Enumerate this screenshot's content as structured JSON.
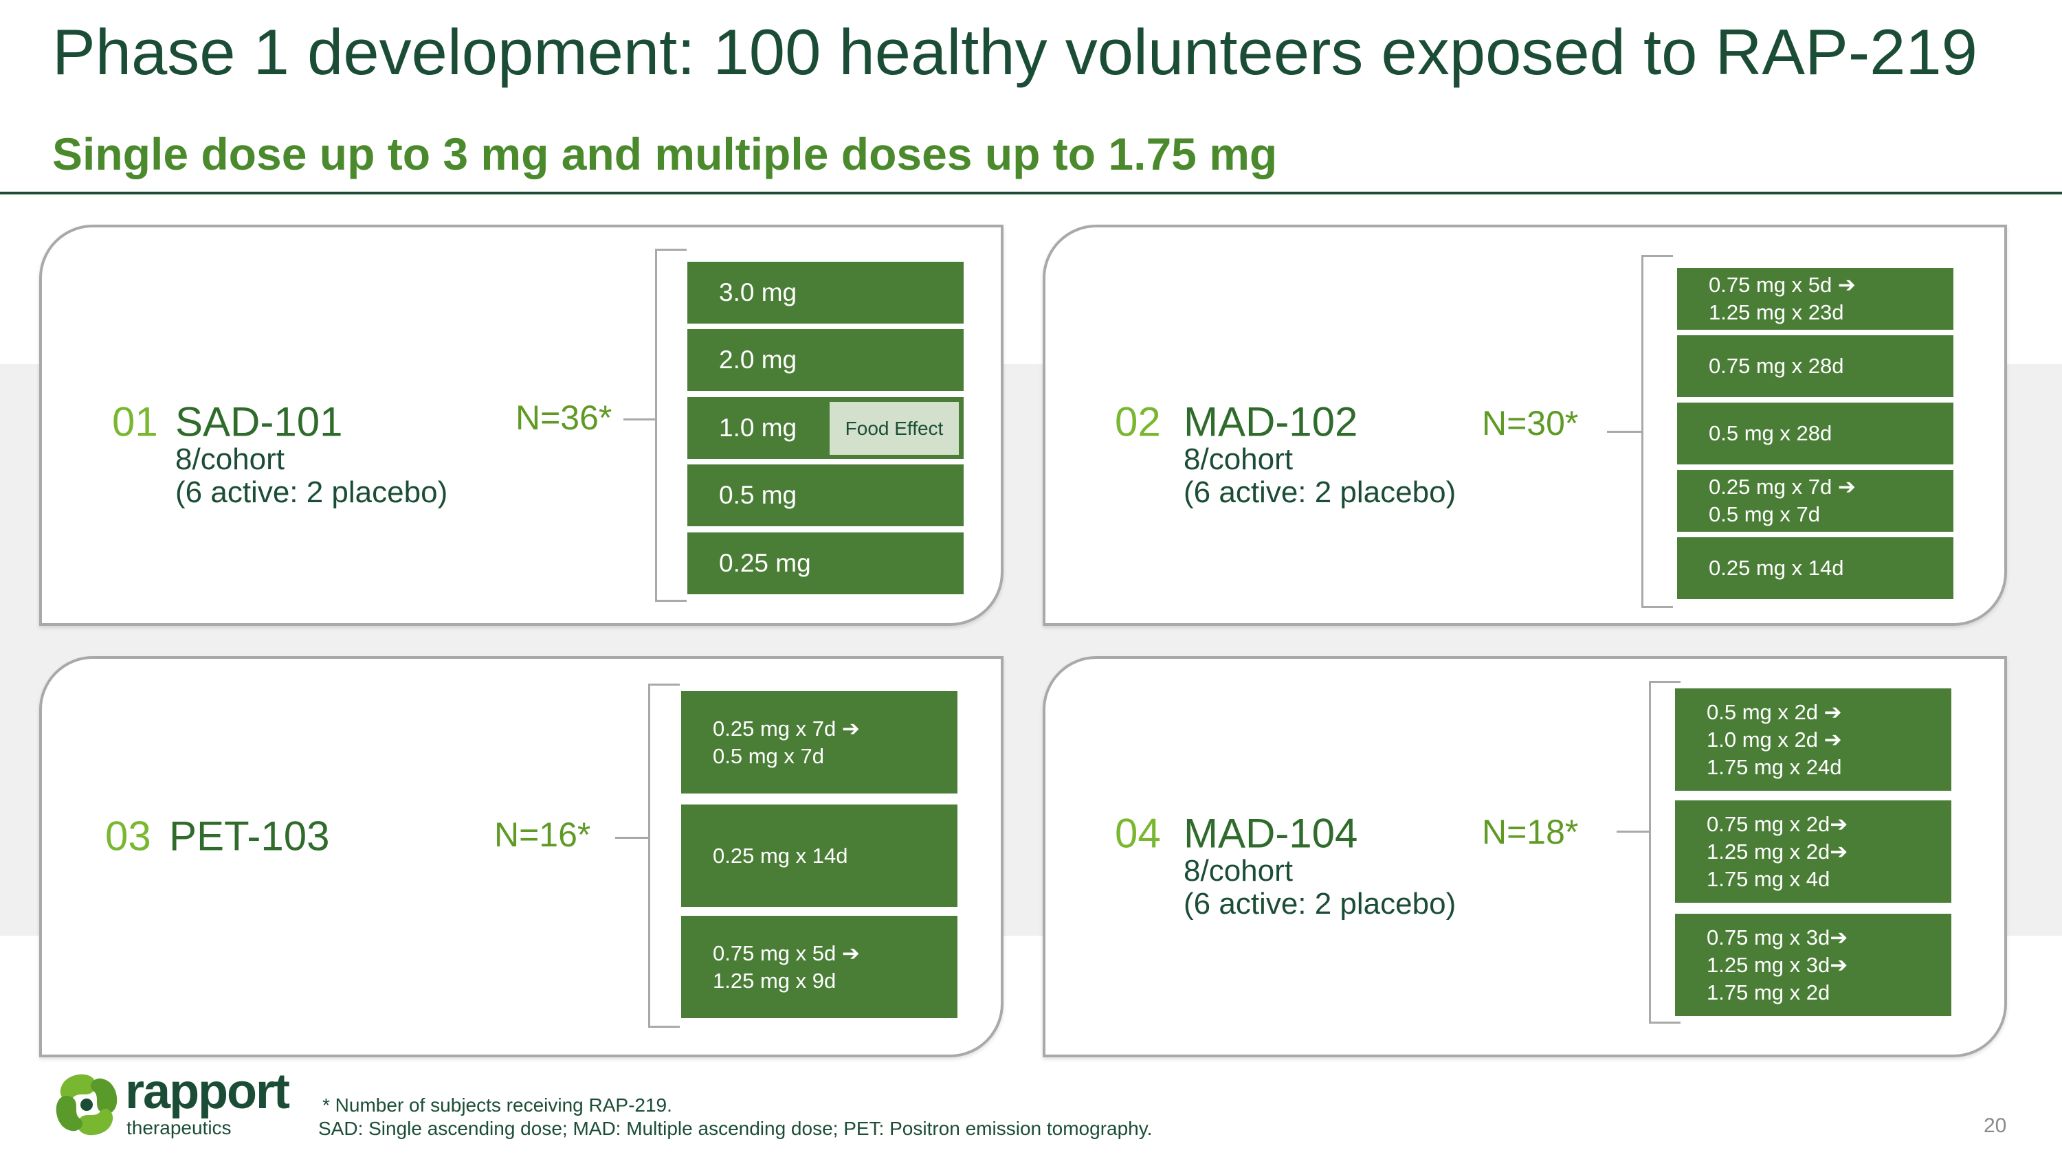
{
  "title": "Phase 1 development: 100 healthy volunteers exposed to RAP-219",
  "subtitle": "Single dose up to 3 mg and multiple doses up to 1.75 mg",
  "studies": [
    {
      "num": "01",
      "name": "SAD-101",
      "cohort": "8/cohort",
      "ratio": "(6 active: 2 placebo)",
      "n": "N=36*",
      "doses": [
        [
          "3.0 mg"
        ],
        [
          "2.0 mg"
        ],
        [
          "1.0 mg"
        ],
        [
          "0.5 mg"
        ],
        [
          "0.25 mg"
        ]
      ],
      "food_effect": "Food Effect"
    },
    {
      "num": "02",
      "name": "MAD-102",
      "cohort": "8/cohort",
      "ratio": "(6 active: 2 placebo)",
      "n": "N=30*",
      "doses": [
        [
          "0.75 mg x 5d ➔",
          "1.25 mg x 23d"
        ],
        [
          "0.75 mg x 28d"
        ],
        [
          "0.5 mg x 28d"
        ],
        [
          "0.25 mg x 7d ➔",
          "0.5 mg x 7d"
        ],
        [
          "0.25 mg x 14d"
        ]
      ]
    },
    {
      "num": "03",
      "name": "PET-103",
      "n": "N=16*",
      "doses": [
        [
          "0.25 mg x 7d ➔",
          "0.5 mg x 7d"
        ],
        [
          "0.25 mg x 14d"
        ],
        [
          "0.75 mg x 5d ➔",
          "1.25 mg x 9d"
        ]
      ]
    },
    {
      "num": "04",
      "name": "MAD-104",
      "cohort": "8/cohort",
      "ratio": "(6 active: 2 placebo)",
      "n": "N=18*",
      "doses": [
        [
          "0.5 mg x 2d ➔",
          "1.0 mg x 2d ➔",
          "1.75 mg x 24d"
        ],
        [
          "0.75 mg x 2d➔",
          "1.25 mg x 2d➔",
          "1.75 mg x 4d"
        ],
        [
          "0.75 mg x 3d➔",
          "1.25 mg x 3d➔",
          "1.75 mg x 2d"
        ]
      ]
    }
  ],
  "footer": {
    "logo_name": "rapport",
    "logo_sub": "therapeutics",
    "note1": "* Number of subjects receiving RAP-219.",
    "note2": "SAD: Single ascending dose; MAD: Multiple ascending dose; PET: Positron emission tomography.",
    "page": "20"
  },
  "colors": {
    "dark_green": "#1b4d36",
    "accent_green": "#4b8a2c",
    "box_green": "#4a7e36",
    "light_green": "#7ab730"
  }
}
